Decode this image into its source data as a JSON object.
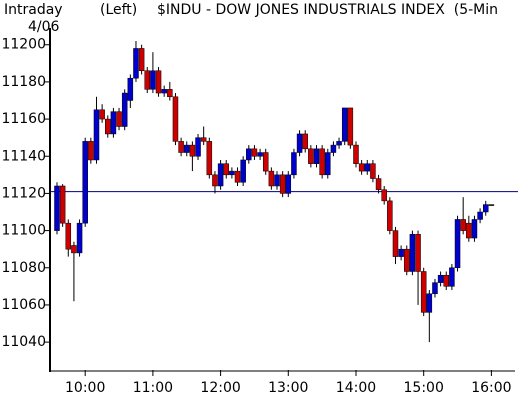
{
  "chart_data": {
    "type": "candlestick",
    "label": "Intraday",
    "side": "(Left)",
    "title": "$INDU - DOW JONES INDUSTRIALS INDEX  (5-Min",
    "date": "4/06",
    "up_color": "#0000cc",
    "down_color": "#cc0000",
    "reference_line": 11121,
    "reference_color": "#000080",
    "open": [
      11100,
      11124,
      11104,
      11092,
      11088,
      11104,
      11148,
      11138,
      11165,
      11160,
      11152,
      11164,
      11156,
      11170,
      11182,
      11198,
      11186,
      11176,
      11186,
      11174,
      11176,
      11172,
      11148,
      11142,
      11146,
      11140,
      11150,
      11148,
      11130,
      11124,
      11136,
      11130,
      11132,
      11126,
      11138,
      11144,
      11140,
      11142,
      11132,
      11124,
      11130,
      11120,
      11130,
      11142,
      11152,
      11144,
      11136,
      11144,
      11130,
      11142,
      11146,
      11148,
      11166,
      11146,
      11136,
      11132,
      11136,
      11128,
      11122,
      11116,
      11100,
      11086,
      11090,
      11078,
      11098,
      11078,
      11056,
      11066,
      11072,
      11076,
      11070,
      11080,
      11106,
      11104,
      11096,
      11106,
      11110,
      11114
    ],
    "high": [
      11126,
      11125,
      11106,
      11094,
      11106,
      11150,
      11150,
      11172,
      11168,
      11162,
      11166,
      11166,
      11176,
      11184,
      11202,
      11200,
      11188,
      11196,
      11188,
      11178,
      11180,
      11174,
      11150,
      11148,
      11148,
      11152,
      11156,
      11150,
      11132,
      11138,
      11138,
      11134,
      11134,
      11140,
      11146,
      11146,
      11144,
      11144,
      11134,
      11132,
      11132,
      11132,
      11144,
      11154,
      11154,
      11146,
      11146,
      11146,
      11144,
      11148,
      11150,
      11166,
      11166,
      11148,
      11138,
      11138,
      11138,
      11130,
      11124,
      11118,
      11102,
      11092,
      11092,
      11100,
      11100,
      11080,
      11068,
      11074,
      11078,
      11078,
      11082,
      11108,
      11118,
      11108,
      11108,
      11112,
      11116,
      11114
    ],
    "low": [
      11098,
      11102,
      11086,
      11062,
      11086,
      11102,
      11136,
      11136,
      11158,
      11150,
      11150,
      11154,
      11154,
      11166,
      11180,
      11184,
      11174,
      11174,
      11172,
      11172,
      11170,
      11146,
      11140,
      11140,
      11132,
      11138,
      11146,
      11128,
      11120,
      11122,
      11128,
      11128,
      11124,
      11124,
      11136,
      11138,
      11138,
      11130,
      11122,
      11122,
      11118,
      11118,
      11128,
      11140,
      11142,
      11134,
      11134,
      11128,
      11128,
      11140,
      11144,
      11146,
      11144,
      11134,
      11130,
      11130,
      11126,
      11120,
      11114,
      11098,
      11082,
      11084,
      11076,
      11076,
      11060,
      11054,
      11040,
      11064,
      11070,
      11068,
      11068,
      11078,
      11098,
      11094,
      11094,
      11104,
      11108,
      11114
    ],
    "close": [
      11124,
      11104,
      11090,
      11088,
      11104,
      11148,
      11138,
      11165,
      11160,
      11152,
      11164,
      11156,
      11174,
      11182,
      11198,
      11186,
      11176,
      11186,
      11174,
      11176,
      11172,
      11148,
      11142,
      11146,
      11140,
      11150,
      11148,
      11130,
      11124,
      11136,
      11130,
      11132,
      11126,
      11138,
      11144,
      11140,
      11142,
      11132,
      11124,
      11130,
      11120,
      11130,
      11142,
      11152,
      11144,
      11136,
      11144,
      11130,
      11142,
      11146,
      11148,
      11166,
      11146,
      11136,
      11132,
      11136,
      11128,
      11122,
      11116,
      11100,
      11086,
      11090,
      11078,
      11098,
      11078,
      11056,
      11066,
      11072,
      11076,
      11070,
      11080,
      11106,
      11100,
      11096,
      11106,
      11110,
      11114,
      11114
    ],
    "xlim": [
      -1.24,
      80.3
    ],
    "xticks": [
      {
        "value": 5,
        "label": "10:00"
      },
      {
        "value": 17,
        "label": "11:00"
      },
      {
        "value": 29,
        "label": "12:00"
      },
      {
        "value": 41,
        "label": "13:00"
      },
      {
        "value": 53,
        "label": "14:00"
      },
      {
        "value": 65,
        "label": "15:00"
      },
      {
        "value": 77,
        "label": "16:00"
      }
    ],
    "ylim": [
      11025,
      11209
    ],
    "yticks": [
      11040,
      11060,
      11080,
      11100,
      11120,
      11140,
      11160,
      11180,
      11200
    ]
  }
}
